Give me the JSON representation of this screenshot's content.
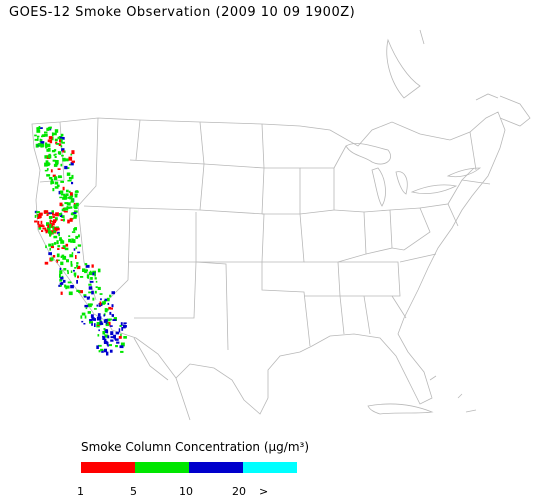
{
  "title": "GOES-12 Smoke Observation (2009 10 09  1900Z)",
  "legend": {
    "title": "Smoke Column Concentration (µg/m³)",
    "bins": [
      {
        "color": "#ff0000",
        "from": 1,
        "to": 5
      },
      {
        "color": "#00e600",
        "from": 5,
        "to": 10
      },
      {
        "color": "#0000cc",
        "from": 10,
        "to": 20
      },
      {
        "color": "#00ffff",
        "from": 20,
        "to": null
      }
    ],
    "tick_labels": [
      "1",
      "5",
      "10",
      "20",
      ">"
    ]
  },
  "map": {
    "region": "Contiguous United States",
    "boundary_color": "#b8b8b8",
    "smoke_present": true,
    "smoke_region": "U.S. West Coast (Washington, Oregon, California)"
  }
}
